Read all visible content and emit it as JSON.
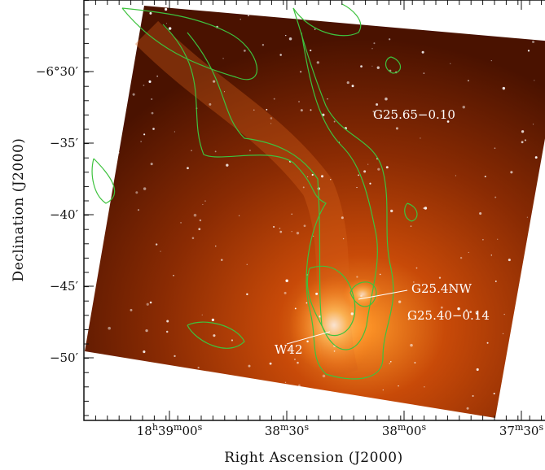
{
  "figure": {
    "x_axis": {
      "label": "Right Ascension (J2000)",
      "ticks": [
        "18h39m00s",
        "38m30s",
        "38m00s",
        "37m30s"
      ]
    },
    "y_axis": {
      "label": "Declination (J2000)",
      "ticks": [
        "−6°30′",
        "−35′",
        "−40′",
        "−45′",
        "−50′"
      ]
    },
    "annotations": [
      "G25.65−0.10",
      "G25.4NW",
      "G25.40−0.14",
      "W42"
    ]
  }
}
